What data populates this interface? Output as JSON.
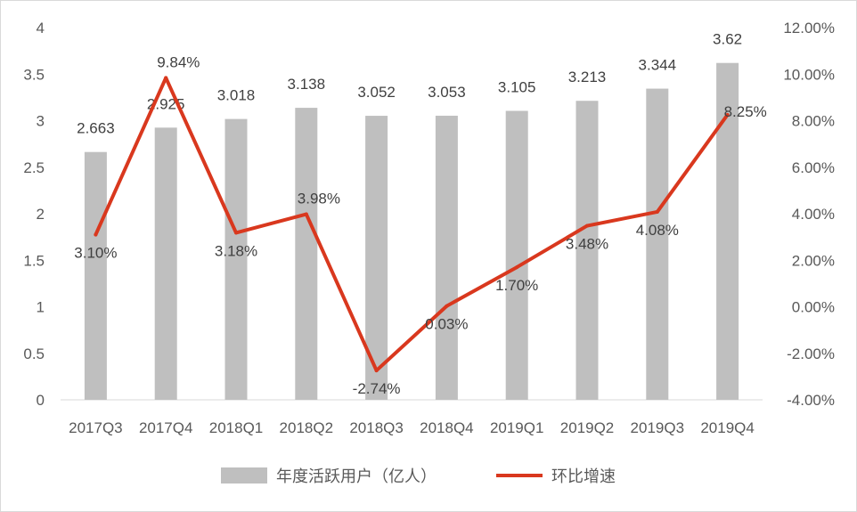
{
  "chart_data": {
    "type": "bar+line",
    "categories": [
      "2017Q3",
      "2017Q4",
      "2018Q1",
      "2018Q2",
      "2018Q3",
      "2018Q4",
      "2019Q1",
      "2019Q2",
      "2019Q3",
      "2019Q4"
    ],
    "series": [
      {
        "name": "年度活跃用户（亿人）",
        "type": "bar",
        "axis": "left",
        "color": "#bfbfbf",
        "values": [
          2.663,
          2.925,
          3.018,
          3.138,
          3.052,
          3.053,
          3.105,
          3.213,
          3.344,
          3.62
        ],
        "labels": [
          "2.663",
          "2.925",
          "3.018",
          "3.138",
          "3.052",
          "3.053",
          "3.105",
          "3.213",
          "3.344",
          "3.62"
        ]
      },
      {
        "name": "环比增速",
        "type": "line",
        "axis": "right",
        "color": "#d9381e",
        "values": [
          3.1,
          9.84,
          3.18,
          3.98,
          -2.74,
          0.03,
          1.7,
          3.48,
          4.08,
          8.25
        ],
        "labels": [
          "3.10%",
          "9.84%",
          "3.18%",
          "3.98%",
          "-2.74%",
          "0.03%",
          "1.70%",
          "3.48%",
          "4.08%",
          "8.25%"
        ]
      }
    ],
    "y_left": {
      "range": [
        0,
        4
      ],
      "ticks": [
        0,
        0.5,
        1,
        1.5,
        2,
        2.5,
        3,
        3.5,
        4
      ],
      "tick_labels": [
        "0",
        "0.5",
        "1",
        "1.5",
        "2",
        "2.5",
        "3",
        "3.5",
        "4"
      ]
    },
    "y_right": {
      "range": [
        -4,
        12
      ],
      "ticks": [
        -4,
        -2,
        0,
        2,
        4,
        6,
        8,
        10,
        12
      ],
      "tick_labels": [
        "-4.00%",
        "-2.00%",
        "0.00%",
        "2.00%",
        "4.00%",
        "6.00%",
        "8.00%",
        "10.00%",
        "12.00%"
      ]
    },
    "grid": false,
    "legend": "bottom"
  }
}
